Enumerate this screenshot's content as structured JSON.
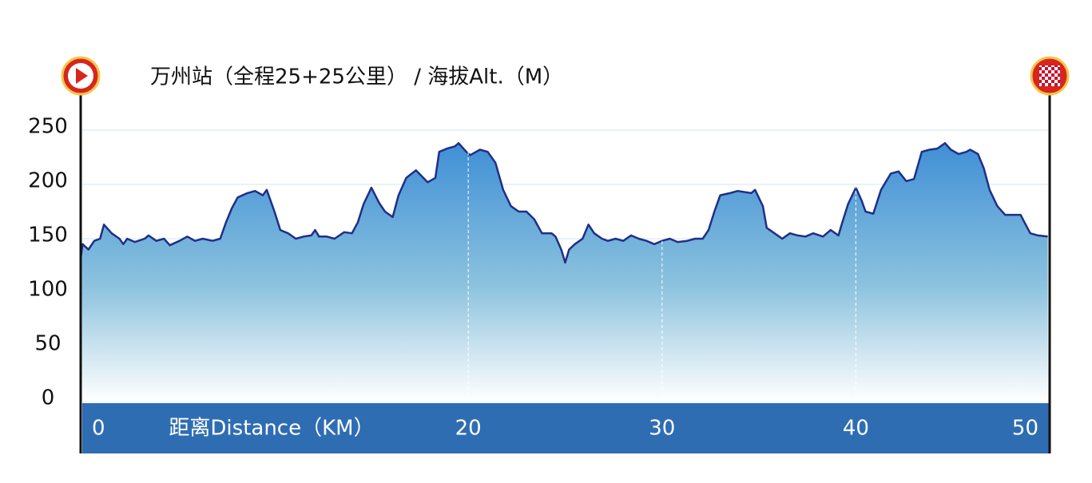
{
  "chart_data": {
    "type": "area",
    "title": "万州站（全程25+25公里） / 海拔Alt.（M）",
    "x_label": "距离Distance（KM）",
    "xlim": [
      0,
      50
    ],
    "xticks": [
      0,
      20,
      30,
      40,
      50
    ],
    "ylim": [
      0,
      250
    ],
    "yticks": [
      0,
      50,
      100,
      150,
      200,
      250
    ],
    "grid": true,
    "series": [
      {
        "color": "#1f2f86",
        "x": [
          0,
          0.1,
          0.4,
          0.7,
          1.0,
          1.2,
          1.6,
          2.0,
          2.2,
          2.4,
          2.8,
          3.3,
          3.5,
          3.9,
          4.3,
          4.6,
          5.1,
          5.5,
          5.9,
          6.3,
          6.8,
          7.2,
          7.5,
          7.8,
          8.1,
          8.6,
          9.0,
          9.4,
          9.6,
          10.0,
          10.3,
          10.7,
          11.1,
          11.5,
          11.9,
          12.1,
          12.3,
          12.7,
          13.1,
          13.6,
          14.0,
          14.3,
          14.6,
          15.0,
          15.4,
          15.7,
          16.1,
          16.4,
          16.8,
          17.3,
          17.9,
          18.3,
          18.5,
          18.9,
          19.3,
          19.5,
          19.9,
          20.1,
          20.6,
          21.0,
          21.4,
          21.8,
          22.2,
          22.6,
          23.0,
          23.4,
          23.8,
          24.3,
          24.5,
          24.8,
          25.0,
          25.2,
          25.5,
          25.9,
          26.2,
          26.5,
          26.9,
          27.2,
          27.6,
          28.0,
          28.4,
          28.8,
          29.2,
          29.6,
          30.0,
          30.4,
          30.8,
          31.3,
          31.7,
          32.1,
          32.4,
          32.7,
          33.0,
          33.5,
          33.9,
          34.6,
          34.8,
          35.2,
          35.4,
          35.8,
          36.2,
          36.6,
          37.0,
          37.4,
          37.8,
          38.3,
          38.7,
          39.1,
          39.3,
          39.6,
          40.0,
          40.3,
          40.5,
          40.9,
          41.3,
          41.8,
          42.2,
          42.6,
          43.0,
          43.4,
          43.8,
          44.2,
          44.6,
          44.9,
          45.3,
          45.7,
          45.9,
          46.3,
          46.6,
          46.9,
          47.3,
          47.7,
          48.1,
          48.5,
          48.7,
          49.0,
          49.4,
          49.9
        ],
        "values": [
          132,
          145,
          140,
          148,
          150,
          163,
          155,
          150,
          145,
          150,
          147,
          150,
          153,
          148,
          150,
          144,
          148,
          152,
          148,
          150,
          148,
          150,
          165,
          178,
          188,
          192,
          194,
          190,
          195,
          175,
          158,
          155,
          150,
          152,
          153,
          158,
          152,
          152,
          150,
          156,
          155,
          165,
          182,
          197,
          183,
          175,
          170,
          190,
          206,
          213,
          202,
          206,
          230,
          233,
          235,
          238,
          230,
          227,
          232,
          230,
          220,
          195,
          180,
          175,
          175,
          168,
          155,
          155,
          152,
          140,
          128,
          140,
          145,
          150,
          163,
          155,
          150,
          148,
          150,
          148,
          153,
          150,
          148,
          145,
          148,
          150,
          147,
          148,
          150,
          150,
          158,
          175,
          190,
          192,
          194,
          192,
          195,
          180,
          160,
          155,
          150,
          155,
          153,
          152,
          155,
          152,
          158,
          153,
          165,
          182,
          197,
          185,
          175,
          173,
          195,
          210,
          212,
          203,
          205,
          230,
          232,
          233,
          238,
          232,
          228,
          230,
          232,
          228,
          215,
          195,
          180,
          172,
          172,
          172,
          165,
          155,
          153,
          152
        ]
      }
    ]
  }
}
